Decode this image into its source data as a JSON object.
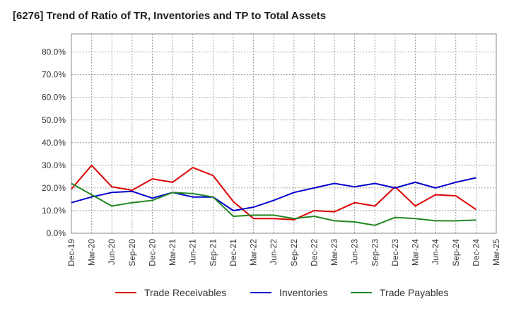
{
  "chart_data": {
    "type": "line",
    "title": "[6276]  Trend of Ratio of TR, Inventories and TP to Total Assets",
    "xlabel": "",
    "ylabel": "",
    "x_tick_labels": [
      "Dec-19",
      "Mar-20",
      "Jun-20",
      "Sep-20",
      "Dec-20",
      "Mar-21",
      "Jun-21",
      "Sep-21",
      "Dec-21",
      "Mar-22",
      "Jun-22",
      "Sep-22",
      "Dec-22",
      "Mar-23",
      "Jun-23",
      "Sep-23",
      "Dec-23",
      "Mar-24",
      "Jun-24",
      "Sep-24",
      "Dec-24",
      "Mar-25"
    ],
    "y_tick_labels": [
      "0.0%",
      "10.0%",
      "20.0%",
      "30.0%",
      "40.0%",
      "50.0%",
      "60.0%",
      "70.0%",
      "80.0%"
    ],
    "ylim": [
      0,
      88
    ],
    "grid": true,
    "legend_position": "bottom",
    "x": [
      "Dec-19",
      "Mar-20",
      "Jun-20",
      "Sep-20",
      "Dec-20",
      "Mar-21",
      "Jun-21",
      "Sep-21",
      "Dec-21",
      "Mar-22",
      "Jun-22",
      "Sep-22",
      "Dec-22",
      "Mar-23",
      "Jun-23",
      "Sep-23",
      "Dec-23",
      "Mar-24",
      "Jun-24",
      "Sep-24",
      "Dec-24"
    ],
    "series": [
      {
        "name": "Trade Receivables",
        "color": "#dd0000",
        "values": [
          19.5,
          30.0,
          20.5,
          19.0,
          24.0,
          22.5,
          29.0,
          25.5,
          14.0,
          6.5,
          6.5,
          6.0,
          10.0,
          9.5,
          13.5,
          12.0,
          20.5,
          12.0,
          17.0,
          16.5,
          10.5
        ]
      },
      {
        "name": "Inventories",
        "color": "#0000cc",
        "values": [
          13.5,
          16.0,
          18.0,
          18.5,
          15.5,
          18.0,
          16.0,
          16.0,
          10.0,
          11.5,
          14.5,
          18.0,
          20.0,
          22.0,
          20.5,
          22.0,
          20.0,
          22.5,
          20.0,
          22.5,
          24.5
        ]
      },
      {
        "name": "Trade Payables",
        "color": "#228822",
        "values": [
          22.0,
          17.0,
          12.0,
          13.5,
          14.5,
          18.0,
          17.5,
          16.0,
          7.5,
          8.0,
          8.0,
          6.5,
          7.5,
          5.5,
          5.0,
          3.5,
          7.0,
          6.5,
          5.5,
          5.5,
          5.8
        ]
      }
    ]
  }
}
